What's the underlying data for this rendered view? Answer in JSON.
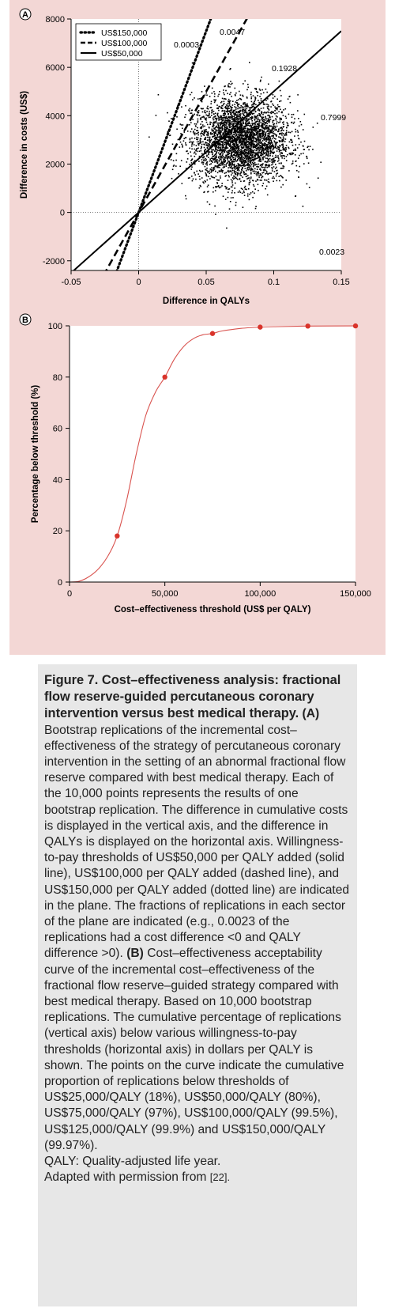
{
  "colors": {
    "panel_bg": "#f3d7d5",
    "plot_bg": "#ffffff",
    "curve": "#d9534f",
    "point": "#d9342b",
    "caption_bg": "#e7e7e7"
  },
  "chart_data": [
    {
      "panel_label": "A",
      "type": "scatter",
      "xlabel": "Difference in QALYs",
      "ylabel": "Difference in costs (US$)",
      "xlim": [
        -0.05,
        0.15
      ],
      "ylim": [
        -2400,
        8000
      ],
      "x_ticks": [
        "-0.05",
        "0",
        "0.05",
        "0.1",
        "0.15"
      ],
      "y_ticks": [
        "-2000",
        "0",
        "2000",
        "4000",
        "6000",
        "8000"
      ],
      "scatter_summary": {
        "n_points": 10000,
        "x_center": 0.075,
        "y_center": 3000,
        "x_sd": 0.018,
        "y_sd": 900
      },
      "lines": [
        {
          "name": "US$150,000",
          "style": "dotted",
          "slope": 150000
        },
        {
          "name": "US$100,000",
          "style": "dashed",
          "slope": 100000
        },
        {
          "name": "US$50,000",
          "style": "solid",
          "slope": 50000
        }
      ],
      "legend_position": "top-left",
      "annotations": [
        "0.0047",
        "0.0003",
        "0.1928",
        "0.7999",
        "0.0023"
      ]
    },
    {
      "panel_label": "B",
      "type": "line",
      "xlabel": "Cost–effectiveness threshold (US$ per QALY)",
      "ylabel": "Percentage below threshold (%)",
      "xlim": [
        0,
        150000
      ],
      "ylim": [
        0,
        100
      ],
      "x_ticks": [
        "0",
        "50,000",
        "100,000",
        "150,000"
      ],
      "y_ticks": [
        "0",
        "20",
        "40",
        "60",
        "80",
        "100"
      ],
      "points": {
        "x": [
          25000,
          50000,
          75000,
          100000,
          125000,
          150000
        ],
        "y": [
          18,
          80,
          97,
          99.5,
          99.9,
          99.97
        ]
      },
      "curve": {
        "x": [
          0,
          5000,
          10000,
          15000,
          20000,
          25000,
          30000,
          35000,
          40000,
          45000,
          50000,
          55000,
          60000,
          65000,
          70000,
          75000,
          80000,
          90000,
          100000,
          110000,
          125000,
          150000
        ],
        "y": [
          0,
          0.3,
          2,
          5,
          10,
          18,
          32,
          50,
          65,
          74,
          80,
          87,
          92,
          95,
          96.5,
          97,
          98,
          99,
          99.5,
          99.7,
          99.9,
          99.97
        ]
      }
    }
  ],
  "caption": {
    "title": "Figure 7. Cost–effectiveness analysis: fractional flow reserve-guided percutaneous coronary intervention versus best medical therapy.",
    "label_a": "(A)",
    "text_a": "Bootstrap replications of the incremental cost–effectiveness of the strategy of percutaneous coronary intervention in the setting of an abnormal fractional flow reserve compared with best medical therapy. Each of the 10,000 points represents the results of one bootstrap replication. The difference in cumulative costs is displayed in the vertical axis, and the difference in QALYs is displayed on the horizontal axis. Willingness-to-pay thresholds of US$50,000 per QALY added (solid line), US$100,000 per QALY added (dashed line), and US$150,000 per QALY added (dotted line) are indicated in the plane. The fractions of replications in each sector of the plane are indicated (e.g., 0.0023 of the replications had a cost difference <0 and QALY difference >0).",
    "label_b": "(B)",
    "text_b": "Cost–effectiveness acceptability curve of the incremental cost–effectiveness of the fractional flow reserve–guided strategy compared with best medical therapy. Based on 10,000 bootstrap replications. The cumulative percentage of replications (vertical axis) below various willingness-to-pay thresholds (horizontal axis) in dollars per QALY is shown. The points on the curve indicate the cumulative proportion of replications below thresholds of US$25,000/QALY (18%), US$50,000/QALY (80%), US$75,000/QALY (97%), US$100,000/QALY (99.5%), US$125,000/QALY (99.9%) and US$150,000/QALY (99.97%).",
    "abbrev": "QALY: Quality-adjusted life year.",
    "adapted": "Adapted with permission from",
    "ref": "[22]."
  }
}
